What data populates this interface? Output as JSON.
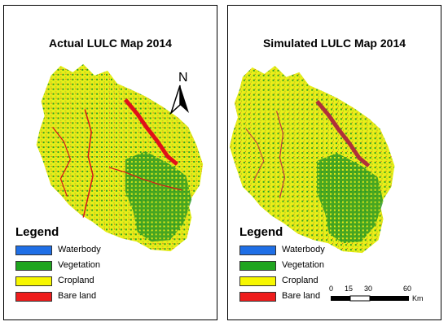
{
  "panels": [
    {
      "title": "Actual LULC Map 2014",
      "legend": {
        "title": "Legend",
        "items": [
          {
            "label": "Waterbody",
            "color": "#1f6fe6"
          },
          {
            "label": "Vegetation",
            "color": "#1fa51f"
          },
          {
            "label": "Cropland",
            "color": "#f7f700"
          },
          {
            "label": "Bare land",
            "color": "#ee1c1c"
          }
        ]
      },
      "north_letter": "N"
    },
    {
      "title": "Simulated LULC Map 2014",
      "legend": {
        "title": "Legend",
        "items": [
          {
            "label": "Waterbody",
            "color": "#1f6fe6"
          },
          {
            "label": "Vegetation",
            "color": "#1fa51f"
          },
          {
            "label": "Cropland",
            "color": "#f7f700"
          },
          {
            "label": "Bare land",
            "color": "#ee1c1c"
          }
        ]
      },
      "scale": {
        "ticks": [
          "0",
          "15",
          "30",
          "60"
        ],
        "unit": "Km"
      }
    }
  ]
}
